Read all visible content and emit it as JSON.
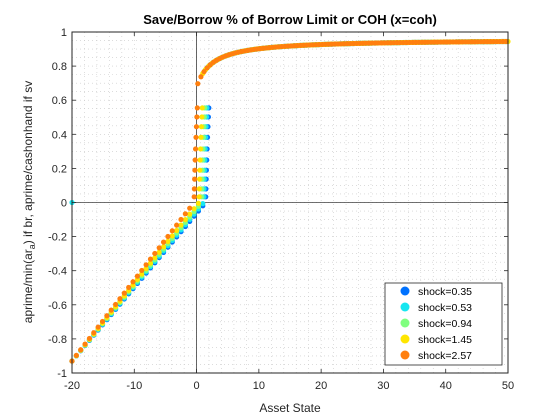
{
  "chart_data": {
    "type": "scatter",
    "title": "Save/Borrow % of Borrow Limit or COH (x=coh)",
    "xlabel": "Asset State",
    "ylabel": "aprime/min(ar_a) if br, aprime/cashonhand if sv",
    "ylabel_parts": {
      "prefix": "aprime/min(ar",
      "subscript": "a",
      "suffix": ") if br, aprime/cashonhand if sv"
    },
    "xlim": [
      -20,
      50
    ],
    "ylim": [
      -1,
      1
    ],
    "x_ticks": [
      -20,
      -10,
      0,
      10,
      20,
      30,
      40,
      50
    ],
    "y_ticks": [
      -1,
      -0.8,
      -0.6,
      -0.4,
      -0.2,
      0,
      0.2,
      0.4,
      0.6,
      0.8,
      1
    ],
    "x_tick_labels": [
      "-20",
      "-10",
      "0",
      "10",
      "20",
      "30",
      "40",
      "50"
    ],
    "y_tick_labels": [
      "-1",
      "-0.8",
      "-0.6",
      "-0.4",
      "-0.2",
      "0",
      "0.2",
      "0.4",
      "0.6",
      "0.8",
      "1"
    ],
    "grid": true,
    "grid_style": "dotted-minor",
    "legend_position": "bottom-right",
    "series": [
      {
        "name": "shock=0.35",
        "color": "#0072ff",
        "x0": 1.45
      },
      {
        "name": "shock=0.53",
        "color": "#17e6f0",
        "x0": 1.15
      },
      {
        "name": "shock=0.94",
        "color": "#80ff80",
        "x0": 0.8
      },
      {
        "name": "shock=1.45",
        "color": "#ffe600",
        "x0": 0.4
      },
      {
        "name": "shock=2.57",
        "color": "#ff7f0e",
        "x0": -0.4
      }
    ],
    "notes": [
      {
        "x": -20,
        "y": 0,
        "series": "shock=0.53"
      }
    ]
  }
}
